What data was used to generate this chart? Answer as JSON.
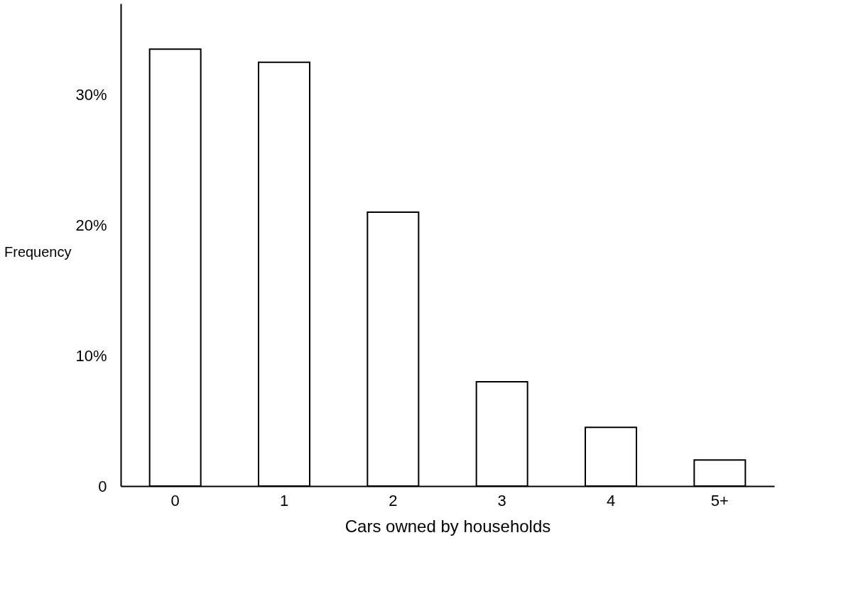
{
  "chart_data": {
    "type": "bar",
    "xlabel": "Cars owned by households",
    "ylabel": "Frequency",
    "categories": [
      "0",
      "1",
      "2",
      "3",
      "4",
      "5+"
    ],
    "values": [
      33.5,
      32.5,
      21,
      8,
      4.5,
      2
    ],
    "color": "#ffffff",
    "ylim": [
      0,
      37
    ],
    "yticks": [
      0,
      {
        "value": 10,
        "label": "10%"
      },
      {
        "value": 20,
        "label": "20%"
      },
      {
        "value": 30,
        "label": "30%"
      }
    ],
    "grid": false
  }
}
